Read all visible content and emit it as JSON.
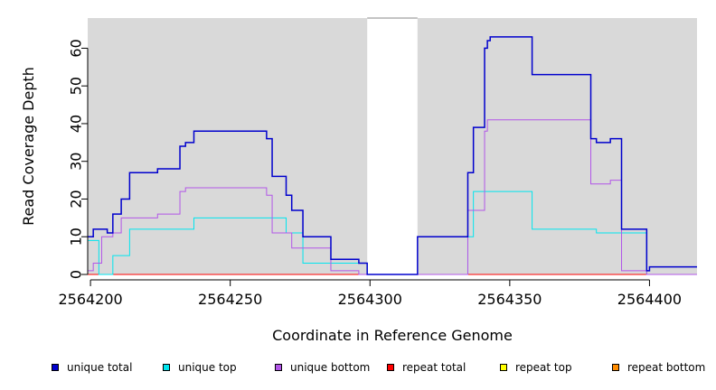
{
  "chart_data": {
    "type": "line",
    "style": "step",
    "xlabel": "Coordinate in Reference Genome",
    "ylabel": "Read Coverage Depth",
    "xlim": [
      2564199,
      2564417
    ],
    "ylim": [
      0,
      68
    ],
    "x_ticks": [
      2564200,
      2564250,
      2564300,
      2564350,
      2564400
    ],
    "y_ticks": [
      0,
      10,
      20,
      30,
      40,
      50,
      60
    ],
    "panel_color": "#d9d9d9",
    "gap": [
      2564299,
      2564317
    ],
    "series": [
      {
        "name": "unique total",
        "color": "#0000cd",
        "x": [
          2564199,
          2564200,
          2564201,
          2564206,
          2564207,
          2564208,
          2564211,
          2564214,
          2564224,
          2564232,
          2564234,
          2564237,
          2564263,
          2564265,
          2564270,
          2564272,
          2564276,
          2564286,
          2564296,
          2564299,
          2564317,
          2564335,
          2564337,
          2564341,
          2564342,
          2564343,
          2564358,
          2564379,
          2564381,
          2564386,
          2564390,
          2564399,
          2564400,
          2564417
        ],
        "y": [
          10,
          10,
          12,
          11,
          11,
          16,
          20,
          27,
          28,
          34,
          35,
          38,
          36,
          26,
          21,
          17,
          10,
          4,
          3,
          0,
          10,
          27,
          39,
          60,
          62,
          63,
          53,
          36,
          35,
          36,
          12,
          1,
          2,
          2
        ]
      },
      {
        "name": "unique top",
        "color": "#00e5ee",
        "x": [
          2564199,
          2564203,
          2564208,
          2564214,
          2564237,
          2564270,
          2564276,
          2564296,
          2564299,
          2564317,
          2564335,
          2564337,
          2564358,
          2564381,
          2564399,
          2564417
        ],
        "y": [
          9,
          0,
          5,
          12,
          15,
          11,
          3,
          3,
          0,
          0,
          10,
          22,
          12,
          11,
          0,
          0
        ]
      },
      {
        "name": "unique bottom",
        "color": "#b256e8",
        "x": [
          2564199,
          2564200,
          2564201,
          2564204,
          2564208,
          2564211,
          2564224,
          2564232,
          2564234,
          2564263,
          2564265,
          2564272,
          2564286,
          2564296,
          2564299,
          2564317,
          2564335,
          2564341,
          2564342,
          2564358,
          2564379,
          2564386,
          2564390,
          2564399,
          2564417
        ],
        "y": [
          1,
          1,
          3,
          10,
          11,
          15,
          16,
          22,
          23,
          21,
          11,
          7,
          1,
          0,
          0,
          0,
          17,
          38,
          41,
          41,
          24,
          25,
          1,
          0,
          0
        ]
      },
      {
        "name": "repeat total",
        "color": "#ff0000",
        "x": [
          2564199,
          2564417
        ],
        "y": [
          0,
          0
        ]
      },
      {
        "name": "repeat top",
        "color": "#ffff00",
        "x": [
          2564199,
          2564417
        ],
        "y": [
          0,
          0
        ]
      },
      {
        "name": "repeat bottom",
        "color": "#ff8c00",
        "x": [
          2564199,
          2564417
        ],
        "y": [
          0,
          0
        ]
      }
    ]
  }
}
